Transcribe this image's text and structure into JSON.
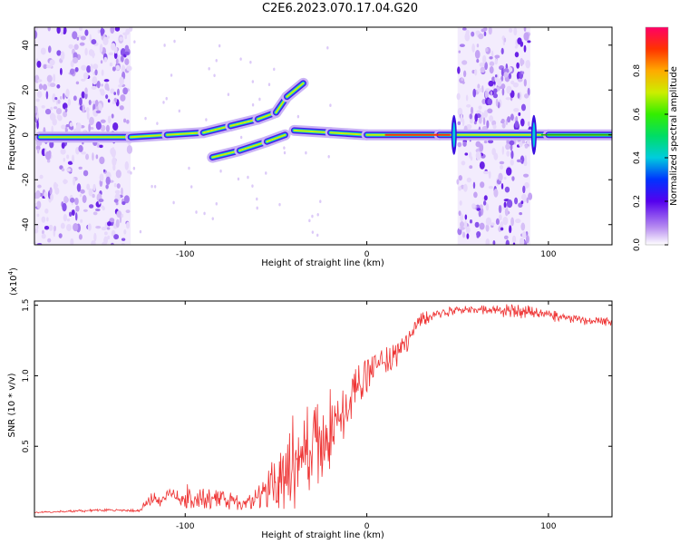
{
  "title": "C2E6.2023.070.17.04.G20",
  "colors": {
    "snr_line": "#ee3333",
    "axis": "#000000"
  },
  "chart_data": [
    {
      "type": "heatmap",
      "xlabel": "Height of straight line (km)",
      "ylabel": "Frequency (Hz)",
      "xlim": [
        -183,
        135
      ],
      "ylim": [
        -49,
        48
      ],
      "x_ticks": [
        -100,
        0,
        100
      ],
      "y_ticks": [
        -40,
        -20,
        0,
        20,
        40
      ],
      "colorbar": {
        "label": "Normalized spectral amplitude",
        "range": [
          0,
          1
        ],
        "ticks": [
          "0.0",
          "0.2",
          "0.4",
          "0.6",
          "0.8"
        ]
      },
      "features": {
        "noise_bands_km": [
          [
            -183,
            -130
          ],
          [
            50,
            90
          ]
        ],
        "carrier_track": [
          {
            "x": -180,
            "y": -1
          },
          {
            "x": -130,
            "y": -1
          },
          {
            "x": -110,
            "y": 0
          },
          {
            "x": -90,
            "y": 1
          },
          {
            "x": -75,
            "y": 4
          },
          {
            "x": -60,
            "y": 7
          },
          {
            "x": -50,
            "y": 10
          },
          {
            "x": -44,
            "y": 17
          },
          {
            "x": -35,
            "y": 23
          },
          {
            "x": -40,
            "y": 2
          },
          {
            "x": -20,
            "y": 1
          },
          {
            "x": 0,
            "y": 0
          },
          {
            "x": 40,
            "y": 0
          },
          {
            "x": 100,
            "y": 0
          },
          {
            "x": 135,
            "y": 0
          }
        ],
        "lower_branch": [
          {
            "x": -85,
            "y": -10
          },
          {
            "x": -70,
            "y": -7
          },
          {
            "x": -55,
            "y": -3
          },
          {
            "x": -45,
            "y": 0
          }
        ],
        "spikes_km": [
          48,
          92
        ]
      }
    },
    {
      "type": "line",
      "xlabel": "Height of straight line (km)",
      "ylabel": "SNR (10 * v/v)",
      "y_multiplier": "(x10",
      "y_multiplier_exp": "4",
      "y_multiplier_close": ")",
      "xlim": [
        -183,
        135
      ],
      "ylim": [
        0,
        1.53
      ],
      "x_ticks": [
        -100,
        0,
        100
      ],
      "y_ticks": [
        "0.5",
        "1.0",
        "1.5"
      ],
      "series": [
        {
          "x": [
            -183,
            -160,
            -140,
            -125,
            -120,
            -110,
            -100,
            -90,
            -80,
            -70,
            -60,
            -50,
            -45,
            -40,
            -35,
            -30,
            -25,
            -20,
            -15,
            -10,
            -5,
            0,
            5,
            10,
            15,
            20,
            25,
            30,
            40,
            50,
            60,
            70,
            80,
            90,
            100,
            110,
            120,
            135
          ],
          "values": [
            0.03,
            0.04,
            0.05,
            0.04,
            0.12,
            0.14,
            0.15,
            0.13,
            0.12,
            0.1,
            0.14,
            0.25,
            0.32,
            0.4,
            0.45,
            0.52,
            0.56,
            0.62,
            0.68,
            0.75,
            0.92,
            1.0,
            1.06,
            1.1,
            1.13,
            1.18,
            1.3,
            1.4,
            1.44,
            1.47,
            1.47,
            1.46,
            1.46,
            1.45,
            1.43,
            1.41,
            1.39,
            1.38
          ],
          "amplitude": [
            0.005,
            0.01,
            0.01,
            0.01,
            0.05,
            0.07,
            0.09,
            0.08,
            0.07,
            0.06,
            0.1,
            0.2,
            0.3,
            0.35,
            0.3,
            0.35,
            0.3,
            0.3,
            0.25,
            0.22,
            0.15,
            0.12,
            0.1,
            0.1,
            0.1,
            0.09,
            0.06,
            0.05,
            0.04,
            0.03,
            0.03,
            0.04,
            0.05,
            0.05,
            0.04,
            0.04,
            0.03,
            0.03
          ]
        }
      ]
    }
  ]
}
